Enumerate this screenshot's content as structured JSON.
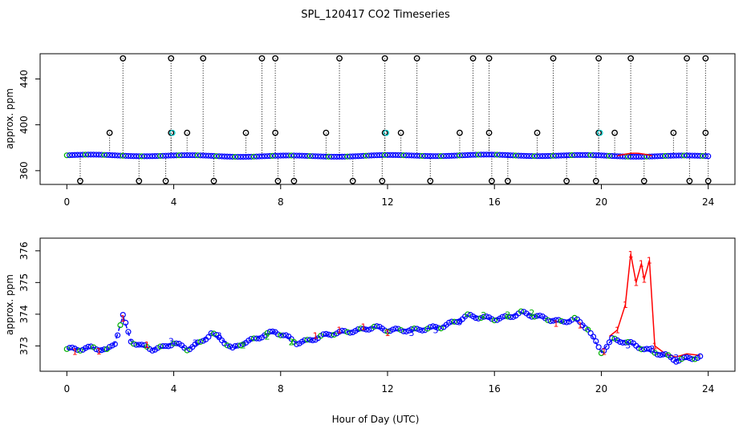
{
  "chart_data": [
    {
      "type": "scatter",
      "title": "SPL_120417  CO2 Timeseries",
      "xlabel": "",
      "ylabel": "approx. ppm",
      "xlim": [
        -1,
        25
      ],
      "ylim": [
        348,
        462
      ],
      "xticks": [
        0,
        4,
        8,
        12,
        16,
        20,
        24
      ],
      "yticks": [
        360,
        400,
        440
      ],
      "baseline": 373,
      "outliers_high_x": [
        2.1,
        3.9,
        5.1,
        7.3,
        7.8,
        10.2,
        11.9,
        13.1,
        15.2,
        15.8,
        18.2,
        19.9,
        21.1,
        23.2,
        23.9
      ],
      "outliers_high_y": 458,
      "outliers_mid_x": [
        1.6,
        3.9,
        4.5,
        6.7,
        7.8,
        9.7,
        11.9,
        12.5,
        14.7,
        15.8,
        17.6,
        19.9,
        20.5,
        22.7,
        23.9
      ],
      "outliers_mid_y": 393,
      "outliers_low_x": [
        0.5,
        2.7,
        3.7,
        5.5,
        7.9,
        8.5,
        10.7,
        11.8,
        13.6,
        15.9,
        16.5,
        18.7,
        19.8,
        21.6,
        23.3,
        24.0
      ],
      "outliers_low_y": 351,
      "spike": {
        "x_start": 20.6,
        "x_end": 21.9,
        "peak": 376
      }
    },
    {
      "type": "line",
      "title": "",
      "xlabel": "Hour of Day (UTC)",
      "ylabel": "approx. ppm",
      "xlim": [
        -1,
        25
      ],
      "ylim": [
        372.2,
        376.4
      ],
      "xticks": [
        0,
        4,
        8,
        12,
        16,
        20,
        24
      ],
      "yticks": [
        373,
        374,
        375,
        376
      ],
      "series": [
        {
          "name": "1",
          "color": "#ff0000",
          "style": "solid"
        },
        {
          "name": "2",
          "color": "#00b000",
          "style": "points"
        },
        {
          "name": "3",
          "color": "#0000ff",
          "style": "dashed"
        }
      ],
      "x": [
        0,
        0.5,
        1,
        1.5,
        1.8,
        2.1,
        2.4,
        2.8,
        3.2,
        3.6,
        4,
        4.5,
        5,
        5.4,
        5.8,
        6.2,
        6.6,
        7,
        7.4,
        7.8,
        8.2,
        8.6,
        9,
        9.5,
        10,
        10.5,
        11,
        11.5,
        12,
        12.5,
        13,
        13.5,
        14,
        14.5,
        15,
        15.5,
        16,
        16.5,
        17,
        17.5,
        18,
        18.5,
        19,
        19.5,
        20,
        20.4,
        20.8,
        21.2,
        21.6,
        22,
        22.4,
        22.8,
        23.2,
        23.7
      ],
      "values": [
        372.9,
        372.9,
        372.95,
        372.85,
        373.1,
        373.95,
        373.15,
        373.0,
        372.9,
        372.95,
        373.1,
        372.9,
        373.1,
        373.4,
        373.2,
        372.9,
        373.1,
        373.2,
        373.35,
        373.45,
        373.3,
        373.1,
        373.15,
        373.3,
        373.4,
        373.45,
        373.5,
        373.6,
        373.5,
        373.5,
        373.5,
        373.55,
        373.6,
        373.75,
        373.95,
        373.9,
        373.85,
        373.9,
        374.05,
        373.95,
        373.85,
        373.75,
        373.85,
        373.55,
        372.8,
        373.2,
        373.15,
        373.05,
        372.9,
        372.8,
        372.7,
        372.55,
        372.6,
        372.65
      ],
      "spike_x": [
        20.6,
        20.9,
        21.1,
        21.3,
        21.5,
        21.6,
        21.8,
        22.0
      ],
      "spike_values": [
        373.5,
        374.3,
        375.9,
        375.0,
        375.6,
        375.1,
        375.7,
        373.0
      ]
    }
  ]
}
